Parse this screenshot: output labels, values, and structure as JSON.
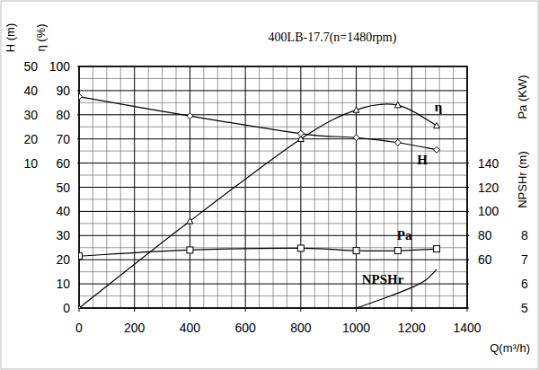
{
  "chart_data": {
    "type": "line",
    "title": "400LB-17.7(n=1480rpm)",
    "x_label": "Q(m³/h)",
    "y_label": "η (%)",
    "y2_label": "H (m)",
    "y3_label": "Pa (KW)",
    "y4_label": "NPSHr (m)",
    "xlim": [
      0,
      1400
    ],
    "xticks": [
      0,
      200,
      400,
      600,
      800,
      1000,
      1200,
      1400
    ],
    "ylim": [
      0,
      100
    ],
    "yticks": [
      0,
      10,
      20,
      30,
      40,
      50,
      60,
      70,
      80,
      90,
      100
    ],
    "y2lim": [
      -50,
      50
    ],
    "y2ticks": [
      10,
      20,
      30,
      40,
      50
    ],
    "y3lim": [
      20,
      220
    ],
    "y3ticks": [
      60,
      80,
      100,
      120,
      140
    ],
    "y4lim": [
      5,
      15
    ],
    "y4ticks": [
      5,
      6,
      7,
      8
    ],
    "grid": true,
    "series": [
      {
        "name": "η",
        "color": "#000000",
        "marker": "triangle",
        "line_style": "solid",
        "axis": "y",
        "x": [
          0,
          400,
          800,
          1000,
          1150,
          1290
        ],
        "values": [
          0,
          36,
          70,
          82,
          84,
          75.5
        ]
      },
      {
        "name": "H",
        "color": "#000000",
        "marker": "diamond",
        "line_style": "solid",
        "axis": "y2",
        "x": [
          0,
          400,
          800,
          1000,
          1150,
          1290
        ],
        "values": [
          37.5,
          29.5,
          22.2,
          20.5,
          18.5,
          15.5
        ]
      },
      {
        "name": "Pa",
        "color": "#000000",
        "marker": "square",
        "line_style": "solid",
        "axis": "y3",
        "x": [
          0,
          400,
          800,
          1000,
          1150,
          1290
        ],
        "values": [
          63,
          68,
          69.5,
          67.5,
          67.5,
          69
        ]
      },
      {
        "name": "NPSHr",
        "color": "#000000",
        "marker": "none",
        "line_style": "solid",
        "axis": "y4",
        "x": [
          1000,
          1100,
          1200,
          1250,
          1290
        ],
        "values": [
          5.0,
          5.4,
          5.85,
          6.15,
          6.6
        ]
      }
    ]
  }
}
